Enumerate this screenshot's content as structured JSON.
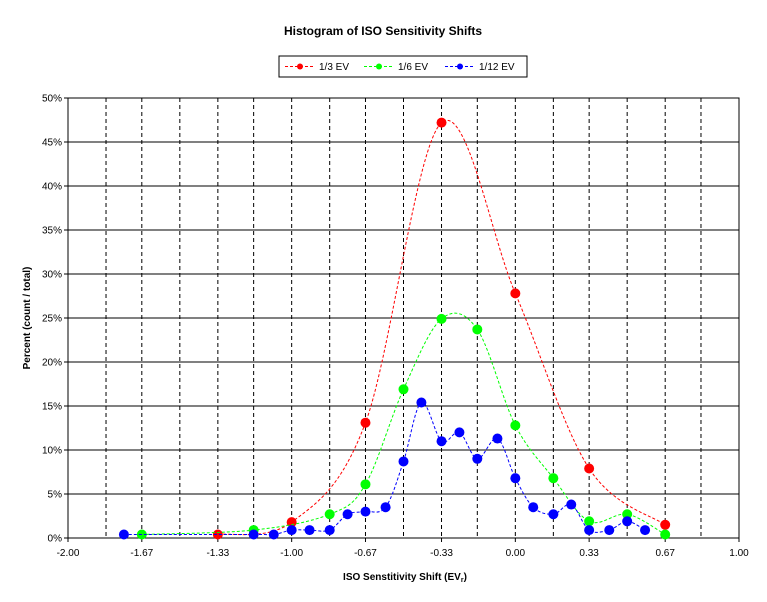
{
  "chart_data": {
    "type": "scatter",
    "title": "Histogram of ISO Sensitivity Shifts",
    "xlabel": "ISO Senstitivity Shift (EV",
    "xlabel_sub": "r",
    "xlabel_close": ")",
    "ylabel": "Percent (count / total)",
    "xlim": [
      -2.0,
      1.0
    ],
    "ylim": [
      0,
      50
    ],
    "x_ticks": [
      -2.0,
      -1.67,
      -1.33,
      -1.0,
      -0.67,
      -0.33,
      0.0,
      0.33,
      0.67,
      1.0
    ],
    "x_tick_labels": [
      "-2.00",
      "-1.67",
      "-1.33",
      "-1.00",
      "-0.67",
      "-0.33",
      "0.00",
      "0.33",
      "0.67",
      "1.00"
    ],
    "x_minor_gridlines": [
      -1.83,
      -1.5,
      -1.17,
      -0.83,
      -0.5,
      -0.17,
      0.17,
      0.5,
      0.83
    ],
    "y_ticks": [
      0,
      5,
      10,
      15,
      20,
      25,
      30,
      35,
      40,
      45,
      50
    ],
    "y_tick_labels": [
      "0%",
      "5%",
      "10%",
      "15%",
      "20%",
      "25%",
      "30%",
      "35%",
      "40%",
      "45%",
      "50%"
    ],
    "grid": true,
    "legend_position": "top-center",
    "series": [
      {
        "name": "1/3 EV",
        "color": "#ff0000",
        "x": [
          -1.33,
          -1.0,
          -0.67,
          -0.33,
          0.0,
          0.33,
          0.67
        ],
        "y": [
          0.4,
          1.8,
          13.1,
          47.2,
          27.8,
          7.9,
          1.5
        ]
      },
      {
        "name": "1/6 EV",
        "color": "#00ff00",
        "x": [
          -1.67,
          -1.17,
          -0.83,
          -0.67,
          -0.5,
          -0.33,
          -0.17,
          0.0,
          0.17,
          0.33,
          0.5,
          0.67
        ],
        "y": [
          0.4,
          0.9,
          2.7,
          6.1,
          16.9,
          24.9,
          23.7,
          12.8,
          6.8,
          1.9,
          2.7,
          0.4
        ]
      },
      {
        "name": "1/12 EV",
        "color": "#0000ff",
        "x": [
          -1.75,
          -1.17,
          -1.08,
          -1.0,
          -0.92,
          -0.83,
          -0.75,
          -0.67,
          -0.58,
          -0.5,
          -0.42,
          -0.33,
          -0.25,
          -0.17,
          -0.08,
          0.0,
          0.08,
          0.17,
          0.25,
          0.33,
          0.42,
          0.5,
          0.58
        ],
        "y": [
          0.4,
          0.4,
          0.4,
          0.9,
          0.9,
          0.9,
          2.7,
          3.0,
          3.5,
          8.7,
          15.4,
          11.0,
          12.0,
          9.0,
          11.3,
          6.8,
          3.5,
          2.7,
          3.8,
          0.9,
          0.9,
          1.9,
          0.9
        ]
      }
    ]
  }
}
